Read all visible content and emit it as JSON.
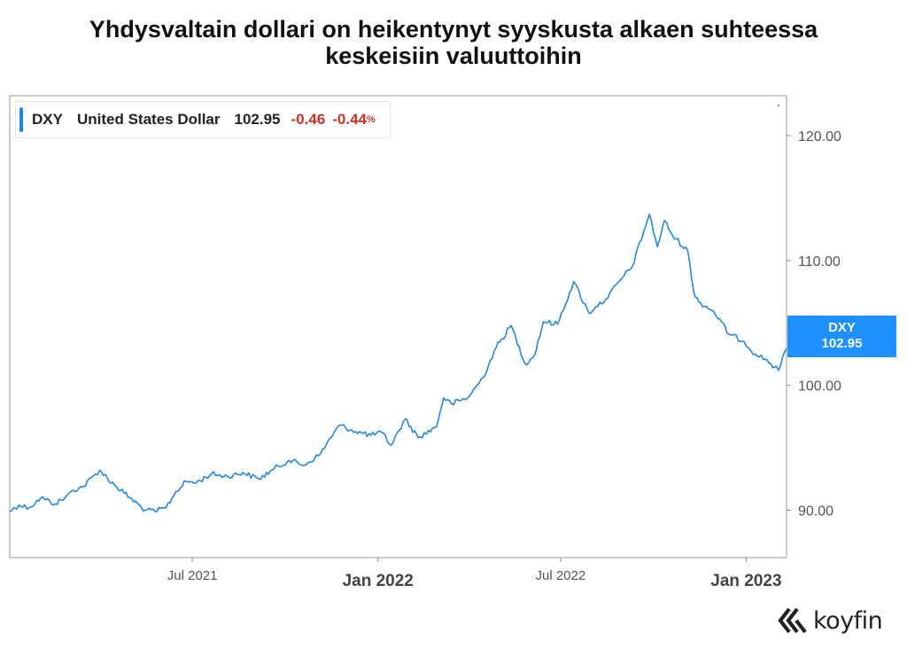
{
  "title": {
    "line1": "Yhdysvaltain dollari on heikentynyt syyskusta alkaen suhteessa",
    "line2": "keskeisiin valuuttoihin"
  },
  "legend": {
    "symbol": "DXY",
    "name": "United States Dollar",
    "value": "102.95",
    "change": "-0.46",
    "change_pct": "-0.44",
    "pct_sign": "%"
  },
  "price_tag": {
    "symbol": "DXY",
    "value": "102.95"
  },
  "brand": {
    "name": "koyfin"
  },
  "colors": {
    "line": "#1e88e5",
    "tag": "#1e90ff",
    "negative": "#d0302a"
  },
  "chart_data": {
    "type": "line",
    "ylim": [
      86.2,
      123.2
    ],
    "x_range": [
      "2021-01-01",
      "2023-02-10"
    ],
    "y_ticks": [
      {
        "value": 120,
        "label": "120.00"
      },
      {
        "value": 110,
        "label": "110.00"
      },
      {
        "value": 100,
        "label": "100.00"
      },
      {
        "value": 90,
        "label": "90.00"
      }
    ],
    "x_ticks": [
      {
        "date": "2021-07-01",
        "label": "Jul 2021",
        "bold": false
      },
      {
        "date": "2022-01-01",
        "label": "Jan 2022",
        "bold": true
      },
      {
        "date": "2022-07-01",
        "label": "Jul 2022",
        "bold": false
      },
      {
        "date": "2023-01-01",
        "label": "Jan 2023",
        "bold": true
      }
    ],
    "series": [
      {
        "dates": [
          "2021-01-01",
          "2021-01-10",
          "2021-01-20",
          "2021-02-01",
          "2021-02-15",
          "2021-02-25",
          "2021-03-05",
          "2021-03-15",
          "2021-03-31",
          "2021-04-15",
          "2021-04-30",
          "2021-05-15",
          "2021-05-25",
          "2021-06-05",
          "2021-06-15",
          "2021-06-25",
          "2021-07-05",
          "2021-07-20",
          "2021-08-05",
          "2021-08-20",
          "2021-09-05",
          "2021-09-20",
          "2021-10-05",
          "2021-10-20",
          "2021-11-05",
          "2021-11-15",
          "2021-11-24",
          "2021-12-10",
          "2021-12-25",
          "2022-01-05",
          "2022-01-14",
          "2022-01-28",
          "2022-02-10",
          "2022-02-28",
          "2022-03-07",
          "2022-03-15",
          "2022-03-31",
          "2022-04-15",
          "2022-04-28",
          "2022-05-13",
          "2022-05-27",
          "2022-06-05",
          "2022-06-14",
          "2022-06-28",
          "2022-07-14",
          "2022-07-29",
          "2022-08-05",
          "2022-08-15",
          "2022-08-31",
          "2022-09-10",
          "2022-09-27",
          "2022-10-05",
          "2022-10-12",
          "2022-10-20",
          "2022-11-04",
          "2022-11-10",
          "2022-11-15",
          "2022-11-30",
          "2022-12-15",
          "2022-12-30",
          "2023-01-10",
          "2023-01-20",
          "2023-02-02",
          "2023-02-10"
        ],
        "values": [
          89.9,
          90.4,
          90.2,
          91.0,
          90.5,
          91.0,
          91.6,
          91.9,
          93.2,
          92.0,
          91.0,
          90.0,
          89.9,
          90.2,
          91.5,
          92.3,
          92.2,
          92.9,
          92.7,
          93.0,
          92.5,
          93.3,
          94.0,
          93.6,
          94.5,
          95.8,
          96.8,
          96.3,
          96.0,
          96.2,
          95.2,
          97.3,
          95.8,
          96.7,
          99.0,
          98.5,
          99.0,
          100.6,
          103.0,
          104.8,
          101.7,
          102.4,
          105.1,
          104.9,
          108.3,
          105.8,
          106.3,
          106.9,
          108.6,
          109.5,
          113.7,
          111.1,
          113.2,
          112.0,
          110.8,
          107.5,
          106.7,
          105.9,
          104.1,
          103.5,
          102.5,
          102.1,
          101.2,
          102.95
        ]
      }
    ]
  }
}
